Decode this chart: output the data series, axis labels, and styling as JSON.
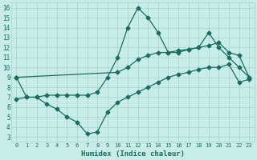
{
  "xlabel": "Humidex (Indice chaleur)",
  "bg_color": "#c8ede8",
  "grid_color": "#a8d8d0",
  "line_color": "#1a6b60",
  "xlim": [
    -0.5,
    23.5
  ],
  "ylim": [
    2.5,
    16.5
  ],
  "xticks": [
    0,
    1,
    2,
    3,
    4,
    5,
    6,
    7,
    8,
    9,
    10,
    11,
    12,
    13,
    14,
    15,
    16,
    17,
    18,
    19,
    20,
    21,
    22,
    23
  ],
  "yticks": [
    3,
    4,
    5,
    6,
    7,
    8,
    9,
    10,
    11,
    12,
    13,
    14,
    15,
    16
  ],
  "line1_x": [
    0,
    1,
    2,
    3,
    4,
    5,
    6,
    7,
    8,
    9,
    10,
    11,
    12,
    13,
    14,
    15,
    16,
    17,
    18,
    19,
    20,
    21,
    22,
    23
  ],
  "line1_y": [
    9.0,
    7.0,
    7.0,
    7.2,
    7.2,
    7.2,
    7.2,
    7.2,
    7.5,
    9.0,
    11.0,
    14.0,
    16.0,
    15.0,
    13.5,
    11.5,
    11.5,
    11.8,
    12.0,
    13.5,
    12.0,
    11.0,
    10.0,
    9.0
  ],
  "line2_x": [
    0,
    10,
    11,
    12,
    13,
    14,
    15,
    16,
    17,
    18,
    19,
    20,
    21,
    22,
    23
  ],
  "line2_y": [
    9.0,
    9.5,
    10.0,
    10.8,
    11.2,
    11.5,
    11.5,
    11.7,
    11.8,
    12.0,
    12.2,
    12.5,
    11.5,
    11.2,
    9.0
  ],
  "line3_x": [
    0,
    1,
    2,
    3,
    4,
    5,
    6,
    7,
    8,
    9,
    10,
    11,
    12,
    13,
    14,
    15,
    16,
    17,
    18,
    19,
    20,
    21,
    22,
    23
  ],
  "line3_y": [
    6.8,
    7.0,
    7.0,
    6.3,
    5.8,
    5.0,
    4.5,
    3.3,
    3.5,
    5.5,
    6.5,
    7.0,
    7.5,
    8.0,
    8.5,
    9.0,
    9.3,
    9.5,
    9.8,
    10.0,
    10.0,
    10.3,
    8.5,
    8.8
  ],
  "markersize": 2.5,
  "linewidth": 0.9
}
